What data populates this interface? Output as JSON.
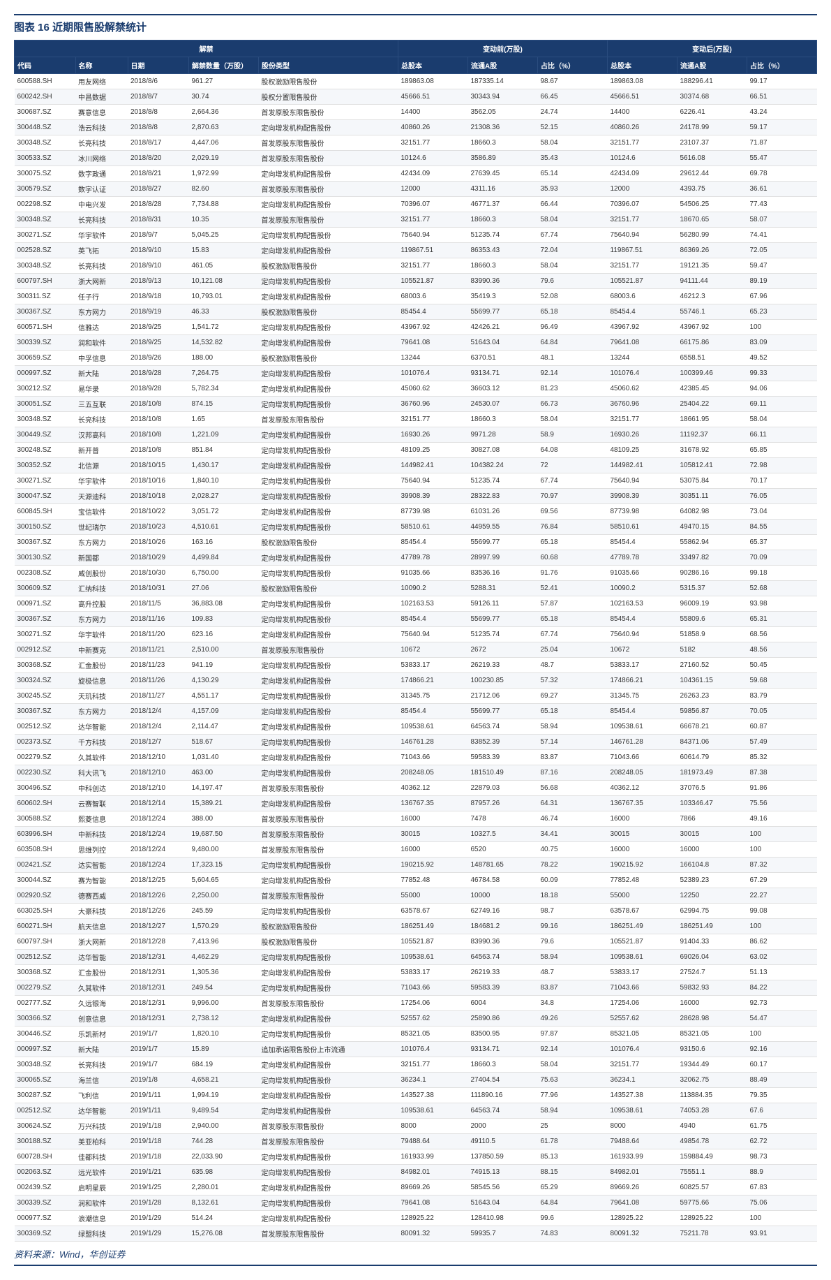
{
  "title": "图表 16  近期限售股解禁统计",
  "source": "资料来源：Wind，华创证券",
  "styling": {
    "header_bg": "#1a3c6e",
    "header_fg": "#ffffff",
    "row_odd_bg": "#ffffff",
    "row_even_bg": "#f5f7fa",
    "border_color": "#e0e0e0",
    "title_color": "#1a3c6e",
    "font_size_body": 10,
    "font_size_title": 15
  },
  "group_headers": {
    "unlock": "解禁",
    "before": "变动前(万股)",
    "after": "变动后(万股)"
  },
  "columns": [
    "代码",
    "名称",
    "日期",
    "解禁数量（万股）",
    "股份类型",
    "总股本",
    "流通A股",
    "占比（%）",
    "总股本",
    "流通A股",
    "占比（%）"
  ],
  "rows": [
    [
      "600588.SH",
      "用友网络",
      "2018/8/6",
      "961.27",
      "股权激励限售股份",
      "189863.08",
      "187335.14",
      "98.67",
      "189863.08",
      "188296.41",
      "99.17"
    ],
    [
      "600242.SH",
      "中昌数据",
      "2018/8/7",
      "30.74",
      "股权分置限售股份",
      "45666.51",
      "30343.94",
      "66.45",
      "45666.51",
      "30374.68",
      "66.51"
    ],
    [
      "300687.SZ",
      "赛意信息",
      "2018/8/8",
      "2,664.36",
      "首发原股东限售股份",
      "14400",
      "3562.05",
      "24.74",
      "14400",
      "6226.41",
      "43.24"
    ],
    [
      "300448.SZ",
      "浩云科技",
      "2018/8/8",
      "2,870.63",
      "定向增发机构配售股份",
      "40860.26",
      "21308.36",
      "52.15",
      "40860.26",
      "24178.99",
      "59.17"
    ],
    [
      "300348.SZ",
      "长亮科技",
      "2018/8/17",
      "4,447.06",
      "首发原股东限售股份",
      "32151.77",
      "18660.3",
      "58.04",
      "32151.77",
      "23107.37",
      "71.87"
    ],
    [
      "300533.SZ",
      "冰川网络",
      "2018/8/20",
      "2,029.19",
      "首发原股东限售股份",
      "10124.6",
      "3586.89",
      "35.43",
      "10124.6",
      "5616.08",
      "55.47"
    ],
    [
      "300075.SZ",
      "数字政通",
      "2018/8/21",
      "1,972.99",
      "定向增发机构配售股份",
      "42434.09",
      "27639.45",
      "65.14",
      "42434.09",
      "29612.44",
      "69.78"
    ],
    [
      "300579.SZ",
      "数字认证",
      "2018/8/27",
      "82.60",
      "首发原股东限售股份",
      "12000",
      "4311.16",
      "35.93",
      "12000",
      "4393.75",
      "36.61"
    ],
    [
      "002298.SZ",
      "中电兴发",
      "2018/8/28",
      "7,734.88",
      "定向增发机构配售股份",
      "70396.07",
      "46771.37",
      "66.44",
      "70396.07",
      "54506.25",
      "77.43"
    ],
    [
      "300348.SZ",
      "长亮科技",
      "2018/8/31",
      "10.35",
      "首发原股东限售股份",
      "32151.77",
      "18660.3",
      "58.04",
      "32151.77",
      "18670.65",
      "58.07"
    ],
    [
      "300271.SZ",
      "华宇软件",
      "2018/9/7",
      "5,045.25",
      "定向增发机构配售股份",
      "75640.94",
      "51235.74",
      "67.74",
      "75640.94",
      "56280.99",
      "74.41"
    ],
    [
      "002528.SZ",
      "英飞拓",
      "2018/9/10",
      "15.83",
      "定向增发机构配售股份",
      "119867.51",
      "86353.43",
      "72.04",
      "119867.51",
      "86369.26",
      "72.05"
    ],
    [
      "300348.SZ",
      "长亮科技",
      "2018/9/10",
      "461.05",
      "股权激励限售股份",
      "32151.77",
      "18660.3",
      "58.04",
      "32151.77",
      "19121.35",
      "59.47"
    ],
    [
      "600797.SH",
      "浙大网新",
      "2018/9/13",
      "10,121.08",
      "定向增发机构配售股份",
      "105521.87",
      "83990.36",
      "79.6",
      "105521.87",
      "94111.44",
      "89.19"
    ],
    [
      "300311.SZ",
      "任子行",
      "2018/9/18",
      "10,793.01",
      "定向增发机构配售股份",
      "68003.6",
      "35419.3",
      "52.08",
      "68003.6",
      "46212.3",
      "67.96"
    ],
    [
      "300367.SZ",
      "东方网力",
      "2018/9/19",
      "46.33",
      "股权激励限售股份",
      "85454.4",
      "55699.77",
      "65.18",
      "85454.4",
      "55746.1",
      "65.23"
    ],
    [
      "600571.SH",
      "信雅达",
      "2018/9/25",
      "1,541.72",
      "定向增发机构配售股份",
      "43967.92",
      "42426.21",
      "96.49",
      "43967.92",
      "43967.92",
      "100"
    ],
    [
      "300339.SZ",
      "润和软件",
      "2018/9/25",
      "14,532.82",
      "定向增发机构配售股份",
      "79641.08",
      "51643.04",
      "64.84",
      "79641.08",
      "66175.86",
      "83.09"
    ],
    [
      "300659.SZ",
      "中孚信息",
      "2018/9/26",
      "188.00",
      "股权激励限售股份",
      "13244",
      "6370.51",
      "48.1",
      "13244",
      "6558.51",
      "49.52"
    ],
    [
      "000997.SZ",
      "新大陆",
      "2018/9/28",
      "7,264.75",
      "定向增发机构配售股份",
      "101076.4",
      "93134.71",
      "92.14",
      "101076.4",
      "100399.46",
      "99.33"
    ],
    [
      "300212.SZ",
      "易华录",
      "2018/9/28",
      "5,782.34",
      "定向增发机构配售股份",
      "45060.62",
      "36603.12",
      "81.23",
      "45060.62",
      "42385.45",
      "94.06"
    ],
    [
      "300051.SZ",
      "三五互联",
      "2018/10/8",
      "874.15",
      "定向增发机构配售股份",
      "36760.96",
      "24530.07",
      "66.73",
      "36760.96",
      "25404.22",
      "69.11"
    ],
    [
      "300348.SZ",
      "长亮科技",
      "2018/10/8",
      "1.65",
      "首发原股东限售股份",
      "32151.77",
      "18660.3",
      "58.04",
      "32151.77",
      "18661.95",
      "58.04"
    ],
    [
      "300449.SZ",
      "汉邦高科",
      "2018/10/8",
      "1,221.09",
      "定向增发机构配售股份",
      "16930.26",
      "9971.28",
      "58.9",
      "16930.26",
      "11192.37",
      "66.11"
    ],
    [
      "300248.SZ",
      "新开普",
      "2018/10/8",
      "851.84",
      "定向增发机构配售股份",
      "48109.25",
      "30827.08",
      "64.08",
      "48109.25",
      "31678.92",
      "65.85"
    ],
    [
      "300352.SZ",
      "北信源",
      "2018/10/15",
      "1,430.17",
      "定向增发机构配售股份",
      "144982.41",
      "104382.24",
      "72",
      "144982.41",
      "105812.41",
      "72.98"
    ],
    [
      "300271.SZ",
      "华宇软件",
      "2018/10/16",
      "1,840.10",
      "定向增发机构配售股份",
      "75640.94",
      "51235.74",
      "67.74",
      "75640.94",
      "53075.84",
      "70.17"
    ],
    [
      "300047.SZ",
      "天源迪科",
      "2018/10/18",
      "2,028.27",
      "定向增发机构配售股份",
      "39908.39",
      "28322.83",
      "70.97",
      "39908.39",
      "30351.11",
      "76.05"
    ],
    [
      "600845.SH",
      "宝信软件",
      "2018/10/22",
      "3,051.72",
      "定向增发机构配售股份",
      "87739.98",
      "61031.26",
      "69.56",
      "87739.98",
      "64082.98",
      "73.04"
    ],
    [
      "300150.SZ",
      "世纪瑞尔",
      "2018/10/23",
      "4,510.61",
      "定向增发机构配售股份",
      "58510.61",
      "44959.55",
      "76.84",
      "58510.61",
      "49470.15",
      "84.55"
    ],
    [
      "300367.SZ",
      "东方网力",
      "2018/10/26",
      "163.16",
      "股权激励限售股份",
      "85454.4",
      "55699.77",
      "65.18",
      "85454.4",
      "55862.94",
      "65.37"
    ],
    [
      "300130.SZ",
      "新国都",
      "2018/10/29",
      "4,499.84",
      "定向增发机构配售股份",
      "47789.78",
      "28997.99",
      "60.68",
      "47789.78",
      "33497.82",
      "70.09"
    ],
    [
      "002308.SZ",
      "威创股份",
      "2018/10/30",
      "6,750.00",
      "定向增发机构配售股份",
      "91035.66",
      "83536.16",
      "91.76",
      "91035.66",
      "90286.16",
      "99.18"
    ],
    [
      "300609.SZ",
      "汇纳科技",
      "2018/10/31",
      "27.06",
      "股权激励限售股份",
      "10090.2",
      "5288.31",
      "52.41",
      "10090.2",
      "5315.37",
      "52.68"
    ],
    [
      "000971.SZ",
      "高升控股",
      "2018/11/5",
      "36,883.08",
      "定向增发机构配售股份",
      "102163.53",
      "59126.11",
      "57.87",
      "102163.53",
      "96009.19",
      "93.98"
    ],
    [
      "300367.SZ",
      "东方网力",
      "2018/11/16",
      "109.83",
      "定向增发机构配售股份",
      "85454.4",
      "55699.77",
      "65.18",
      "85454.4",
      "55809.6",
      "65.31"
    ],
    [
      "300271.SZ",
      "华宇软件",
      "2018/11/20",
      "623.16",
      "定向增发机构配售股份",
      "75640.94",
      "51235.74",
      "67.74",
      "75640.94",
      "51858.9",
      "68.56"
    ],
    [
      "002912.SZ",
      "中新赛克",
      "2018/11/21",
      "2,510.00",
      "首发原股东限售股份",
      "10672",
      "2672",
      "25.04",
      "10672",
      "5182",
      "48.56"
    ],
    [
      "300368.SZ",
      "汇金股份",
      "2018/11/23",
      "941.19",
      "定向增发机构配售股份",
      "53833.17",
      "26219.33",
      "48.7",
      "53833.17",
      "27160.52",
      "50.45"
    ],
    [
      "300324.SZ",
      "旋极信息",
      "2018/11/26",
      "4,130.29",
      "定向增发机构配售股份",
      "174866.21",
      "100230.85",
      "57.32",
      "174866.21",
      "104361.15",
      "59.68"
    ],
    [
      "300245.SZ",
      "天玑科技",
      "2018/11/27",
      "4,551.17",
      "定向增发机构配售股份",
      "31345.75",
      "21712.06",
      "69.27",
      "31345.75",
      "26263.23",
      "83.79"
    ],
    [
      "300367.SZ",
      "东方网力",
      "2018/12/4",
      "4,157.09",
      "定向增发机构配售股份",
      "85454.4",
      "55699.77",
      "65.18",
      "85454.4",
      "59856.87",
      "70.05"
    ],
    [
      "002512.SZ",
      "达华智能",
      "2018/12/4",
      "2,114.47",
      "定向增发机构配售股份",
      "109538.61",
      "64563.74",
      "58.94",
      "109538.61",
      "66678.21",
      "60.87"
    ],
    [
      "002373.SZ",
      "千方科技",
      "2018/12/7",
      "518.67",
      "定向增发机构配售股份",
      "146761.28",
      "83852.39",
      "57.14",
      "146761.28",
      "84371.06",
      "57.49"
    ],
    [
      "002279.SZ",
      "久其软件",
      "2018/12/10",
      "1,031.40",
      "定向增发机构配售股份",
      "71043.66",
      "59583.39",
      "83.87",
      "71043.66",
      "60614.79",
      "85.32"
    ],
    [
      "002230.SZ",
      "科大讯飞",
      "2018/12/10",
      "463.00",
      "定向增发机构配售股份",
      "208248.05",
      "181510.49",
      "87.16",
      "208248.05",
      "181973.49",
      "87.38"
    ],
    [
      "300496.SZ",
      "中科创达",
      "2018/12/10",
      "14,197.47",
      "首发原股东限售股份",
      "40362.12",
      "22879.03",
      "56.68",
      "40362.12",
      "37076.5",
      "91.86"
    ],
    [
      "600602.SH",
      "云赛智联",
      "2018/12/14",
      "15,389.21",
      "定向增发机构配售股份",
      "136767.35",
      "87957.26",
      "64.31",
      "136767.35",
      "103346.47",
      "75.56"
    ],
    [
      "300588.SZ",
      "熙菱信息",
      "2018/12/24",
      "388.00",
      "首发原股东限售股份",
      "16000",
      "7478",
      "46.74",
      "16000",
      "7866",
      "49.16"
    ],
    [
      "603996.SH",
      "中新科技",
      "2018/12/24",
      "19,687.50",
      "首发原股东限售股份",
      "30015",
      "10327.5",
      "34.41",
      "30015",
      "30015",
      "100"
    ],
    [
      "603508.SH",
      "思维列控",
      "2018/12/24",
      "9,480.00",
      "首发原股东限售股份",
      "16000",
      "6520",
      "40.75",
      "16000",
      "16000",
      "100"
    ],
    [
      "002421.SZ",
      "达实智能",
      "2018/12/24",
      "17,323.15",
      "定向增发机构配售股份",
      "190215.92",
      "148781.65",
      "78.22",
      "190215.92",
      "166104.8",
      "87.32"
    ],
    [
      "300044.SZ",
      "赛为智能",
      "2018/12/25",
      "5,604.65",
      "定向增发机构配售股份",
      "77852.48",
      "46784.58",
      "60.09",
      "77852.48",
      "52389.23",
      "67.29"
    ],
    [
      "002920.SZ",
      "德赛西威",
      "2018/12/26",
      "2,250.00",
      "首发原股东限售股份",
      "55000",
      "10000",
      "18.18",
      "55000",
      "12250",
      "22.27"
    ],
    [
      "603025.SH",
      "大豪科技",
      "2018/12/26",
      "245.59",
      "定向增发机构配售股份",
      "63578.67",
      "62749.16",
      "98.7",
      "63578.67",
      "62994.75",
      "99.08"
    ],
    [
      "600271.SH",
      "航天信息",
      "2018/12/27",
      "1,570.29",
      "股权激励限售股份",
      "186251.49",
      "184681.2",
      "99.16",
      "186251.49",
      "186251.49",
      "100"
    ],
    [
      "600797.SH",
      "浙大网新",
      "2018/12/28",
      "7,413.96",
      "股权激励限售股份",
      "105521.87",
      "83990.36",
      "79.6",
      "105521.87",
      "91404.33",
      "86.62"
    ],
    [
      "002512.SZ",
      "达华智能",
      "2018/12/31",
      "4,462.29",
      "定向增发机构配售股份",
      "109538.61",
      "64563.74",
      "58.94",
      "109538.61",
      "69026.04",
      "63.02"
    ],
    [
      "300368.SZ",
      "汇金股份",
      "2018/12/31",
      "1,305.36",
      "定向增发机构配售股份",
      "53833.17",
      "26219.33",
      "48.7",
      "53833.17",
      "27524.7",
      "51.13"
    ],
    [
      "002279.SZ",
      "久其软件",
      "2018/12/31",
      "249.54",
      "定向增发机构配售股份",
      "71043.66",
      "59583.39",
      "83.87",
      "71043.66",
      "59832.93",
      "84.22"
    ],
    [
      "002777.SZ",
      "久远银海",
      "2018/12/31",
      "9,996.00",
      "首发原股东限售股份",
      "17254.06",
      "6004",
      "34.8",
      "17254.06",
      "16000",
      "92.73"
    ],
    [
      "300366.SZ",
      "创意信息",
      "2018/12/31",
      "2,738.12",
      "定向增发机构配售股份",
      "52557.62",
      "25890.86",
      "49.26",
      "52557.62",
      "28628.98",
      "54.47"
    ],
    [
      "300446.SZ",
      "乐凯新材",
      "2019/1/7",
      "1,820.10",
      "定向增发机构配售股份",
      "85321.05",
      "83500.95",
      "97.87",
      "85321.05",
      "85321.05",
      "100"
    ],
    [
      "000997.SZ",
      "新大陆",
      "2019/1/7",
      "15.89",
      "追加承诺限售股份上市流通",
      "101076.4",
      "93134.71",
      "92.14",
      "101076.4",
      "93150.6",
      "92.16"
    ],
    [
      "300348.SZ",
      "长亮科技",
      "2019/1/7",
      "684.19",
      "定向增发机构配售股份",
      "32151.77",
      "18660.3",
      "58.04",
      "32151.77",
      "19344.49",
      "60.17"
    ],
    [
      "300065.SZ",
      "海兰信",
      "2019/1/8",
      "4,658.21",
      "定向增发机构配售股份",
      "36234.1",
      "27404.54",
      "75.63",
      "36234.1",
      "32062.75",
      "88.49"
    ],
    [
      "300287.SZ",
      "飞利信",
      "2019/1/11",
      "1,994.19",
      "定向增发机构配售股份",
      "143527.38",
      "111890.16",
      "77.96",
      "143527.38",
      "113884.35",
      "79.35"
    ],
    [
      "002512.SZ",
      "达华智能",
      "2019/1/11",
      "9,489.54",
      "定向增发机构配售股份",
      "109538.61",
      "64563.74",
      "58.94",
      "109538.61",
      "74053.28",
      "67.6"
    ],
    [
      "300624.SZ",
      "万兴科技",
      "2019/1/18",
      "2,940.00",
      "首发原股东限售股份",
      "8000",
      "2000",
      "25",
      "8000",
      "4940",
      "61.75"
    ],
    [
      "300188.SZ",
      "美亚柏科",
      "2019/1/18",
      "744.28",
      "首发原股东限售股份",
      "79488.64",
      "49110.5",
      "61.78",
      "79488.64",
      "49854.78",
      "62.72"
    ],
    [
      "600728.SH",
      "佳都科技",
      "2019/1/18",
      "22,033.90",
      "定向增发机构配售股份",
      "161933.99",
      "137850.59",
      "85.13",
      "161933.99",
      "159884.49",
      "98.73"
    ],
    [
      "002063.SZ",
      "远光软件",
      "2019/1/21",
      "635.98",
      "定向增发机构配售股份",
      "84982.01",
      "74915.13",
      "88.15",
      "84982.01",
      "75551.1",
      "88.9"
    ],
    [
      "002439.SZ",
      "启明星辰",
      "2019/1/25",
      "2,280.01",
      "定向增发机构配售股份",
      "89669.26",
      "58545.56",
      "65.29",
      "89669.26",
      "60825.57",
      "67.83"
    ],
    [
      "300339.SZ",
      "润和软件",
      "2019/1/28",
      "8,132.61",
      "定向增发机构配售股份",
      "79641.08",
      "51643.04",
      "64.84",
      "79641.08",
      "59775.66",
      "75.06"
    ],
    [
      "000977.SZ",
      "浪潮信息",
      "2019/1/29",
      "514.24",
      "定向增发机构配售股份",
      "128925.22",
      "128410.98",
      "99.6",
      "128925.22",
      "128925.22",
      "100"
    ],
    [
      "300369.SZ",
      "绿盟科技",
      "2019/1/29",
      "15,276.08",
      "首发原股东限售股份",
      "80091.32",
      "59935.7",
      "74.83",
      "80091.32",
      "75211.78",
      "93.91"
    ]
  ]
}
